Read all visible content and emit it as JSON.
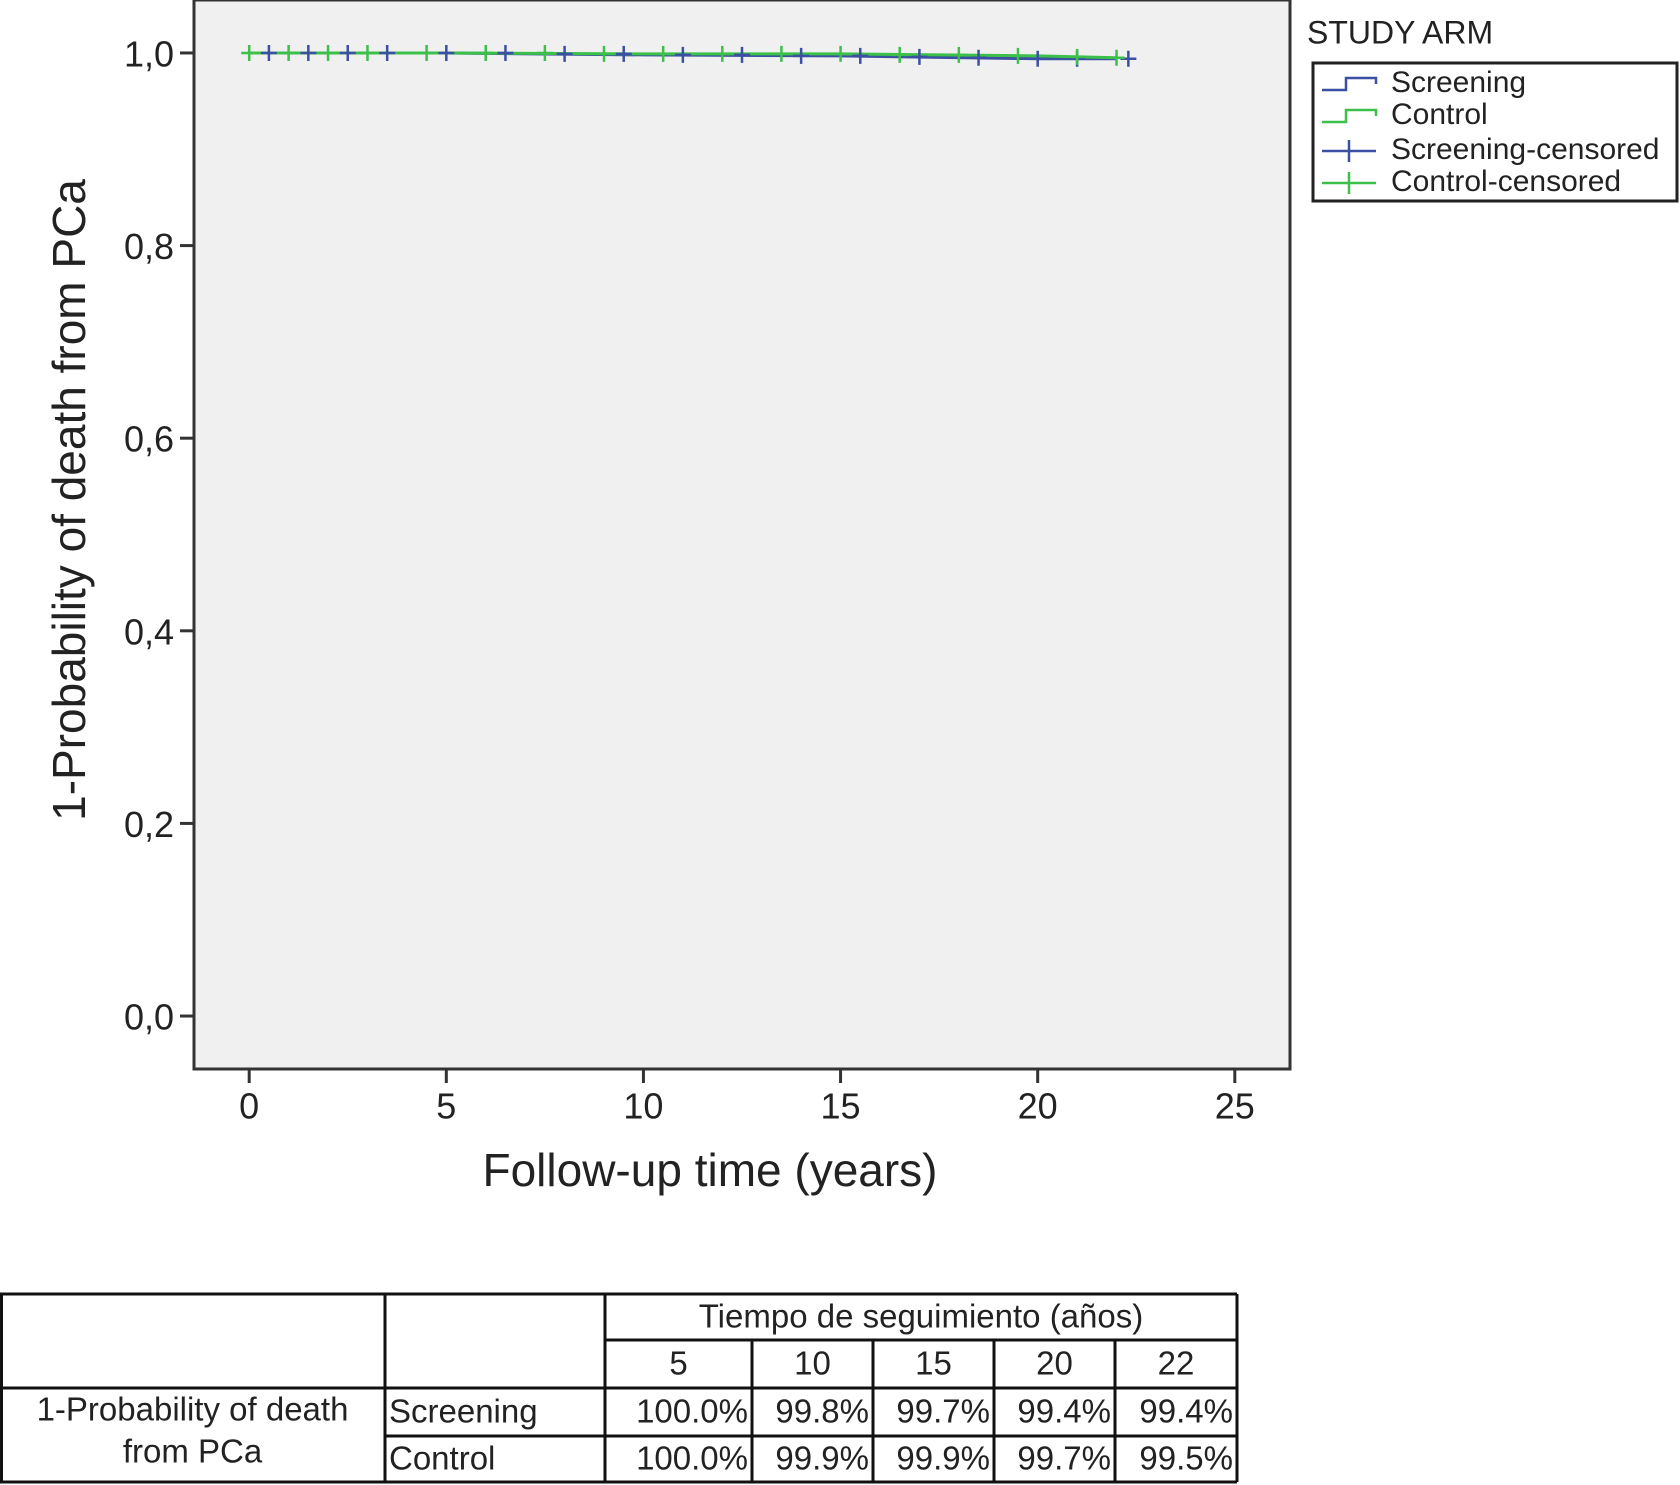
{
  "chart_data": {
    "type": "line",
    "y_label": "1-Probability of death from PCa",
    "x_label": "Follow-up time (years)",
    "legend_title": "STUDY ARM",
    "legend_position": "right",
    "xlim": [
      -1.4,
      26.4
    ],
    "xticks": [
      0,
      5,
      10,
      15,
      20,
      25
    ],
    "ylim": [
      -0.055,
      1.055
    ],
    "yticks": [
      {
        "value": 0,
        "label": "0,0"
      },
      {
        "value": 0.2,
        "label": "0,2"
      },
      {
        "value": 0.4,
        "label": "0,4"
      },
      {
        "value": 0.6,
        "label": "0,6"
      },
      {
        "value": 0.8,
        "label": "0,8"
      },
      {
        "value": 1,
        "label": "1,0"
      }
    ],
    "series": [
      {
        "name": "Screening",
        "color": "#3b4fa3",
        "marker": "step",
        "x": [
          0,
          5,
          10,
          15,
          20,
          22
        ],
        "values": [
          1.0,
          1.0,
          0.998,
          0.997,
          0.994,
          0.994
        ]
      },
      {
        "name": "Control",
        "color": "#3cc04a",
        "marker": "step",
        "x": [
          0,
          5,
          10,
          15,
          20,
          22
        ],
        "values": [
          1.0,
          1.0,
          0.999,
          0.999,
          0.997,
          0.995
        ]
      },
      {
        "name": "Screening-censored",
        "color": "#3b4fa3",
        "marker": "plus",
        "x": [
          0.5,
          1.5,
          2.5,
          3.5,
          5,
          6.5,
          8,
          9.5,
          11,
          12.5,
          14,
          15.5,
          17,
          18.5,
          20,
          21,
          22.3
        ],
        "values": [
          1.0,
          1.0,
          1.0,
          1.0,
          1.0,
          1.0,
          0.999,
          0.999,
          0.998,
          0.998,
          0.997,
          0.997,
          0.996,
          0.995,
          0.994,
          0.994,
          0.994
        ]
      },
      {
        "name": "Control-censored",
        "color": "#3cc04a",
        "marker": "plus",
        "x": [
          0,
          1,
          2,
          3,
          4.5,
          6,
          7.5,
          9,
          10.5,
          12,
          13.5,
          15,
          16.5,
          18,
          19.5,
          21,
          22
        ],
        "values": [
          1.0,
          1.0,
          1.0,
          1.0,
          1.0,
          1.0,
          1.0,
          0.999,
          0.999,
          0.999,
          0.999,
          0.999,
          0.998,
          0.998,
          0.997,
          0.996,
          0.995
        ]
      }
    ]
  },
  "table": {
    "header": "Tiempo de seguimiento (años)",
    "columns": [
      "5",
      "10",
      "15",
      "20",
      "22"
    ],
    "row_label_lines": [
      "1-Probability of death",
      "from PCa"
    ],
    "rows": [
      [
        "Screening",
        "100.0%",
        "99.8%",
        "99.7%",
        "99.4%",
        "99.4%"
      ],
      [
        "Control",
        "100.0%",
        "99.9%",
        "99.9%",
        "99.7%",
        "99.5%"
      ]
    ]
  }
}
